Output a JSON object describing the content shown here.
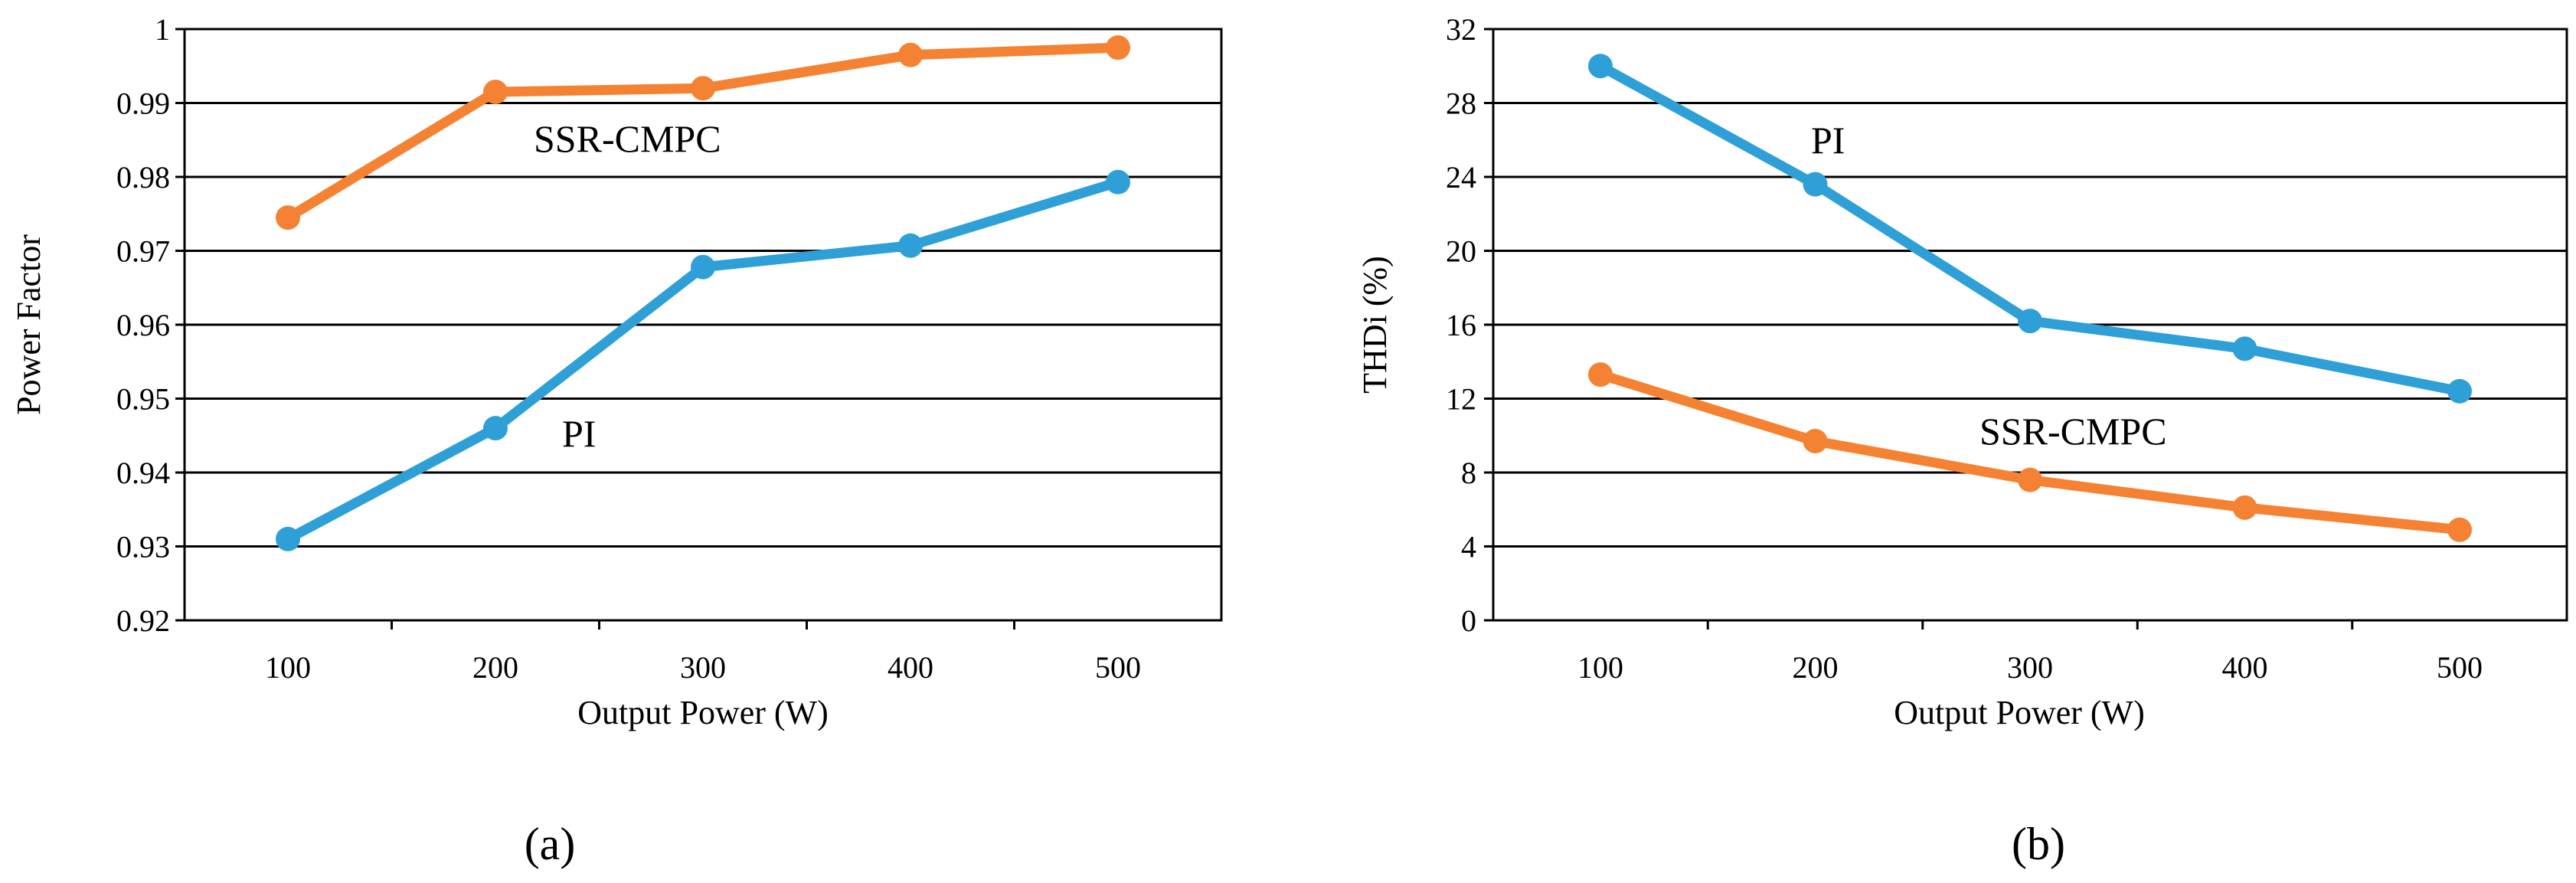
{
  "chart_data": [
    {
      "panel": "a",
      "caption": "(a)",
      "type": "line",
      "x": [
        100,
        200,
        300,
        400,
        500
      ],
      "x_ticks": [
        "100",
        "200",
        "300",
        "400",
        "500"
      ],
      "xlabel": "Output Power (W)",
      "ylabel": "Power Factor",
      "ylim": [
        0.92,
        1.0
      ],
      "y_ticks": [
        0.92,
        0.93,
        0.94,
        0.95,
        0.96,
        0.97,
        0.98,
        0.99,
        1.0
      ],
      "y_tick_labels": [
        "0.92",
        "0.93",
        "0.94",
        "0.95",
        "0.96",
        "0.97",
        "0.98",
        "0.99",
        "1"
      ],
      "grid": true,
      "series": [
        {
          "name": "SSR-CMPC",
          "label": "SSR-CMPC",
          "color": "#F58232",
          "values": [
            0.9745,
            0.9915,
            0.992,
            0.9965,
            0.9975
          ]
        },
        {
          "name": "PI",
          "label": "PI",
          "color": "#2FA0D7",
          "values": [
            0.931,
            0.946,
            0.9678,
            0.9707,
            0.9793
          ]
        }
      ]
    },
    {
      "panel": "b",
      "caption": "(b)",
      "type": "line",
      "x": [
        100,
        200,
        300,
        400,
        500
      ],
      "x_ticks": [
        "100",
        "200",
        "300",
        "400",
        "500"
      ],
      "xlabel": "Output Power (W)",
      "ylabel": "THDi (%)",
      "ylim": [
        0,
        32
      ],
      "y_ticks": [
        0,
        4,
        8,
        12,
        16,
        20,
        24,
        28,
        32
      ],
      "y_tick_labels": [
        "0",
        "4",
        "8",
        "12",
        "16",
        "20",
        "24",
        "28",
        "32"
      ],
      "grid": true,
      "series": [
        {
          "name": "PI",
          "label": "PI",
          "color": "#2FA0D7",
          "values": [
            30.0,
            23.6,
            16.2,
            14.7,
            12.4
          ]
        },
        {
          "name": "SSR-CMPC",
          "label": "SSR-CMPC",
          "color": "#F58232",
          "values": [
            13.3,
            9.7,
            7.6,
            6.1,
            4.9
          ]
        }
      ]
    }
  ]
}
